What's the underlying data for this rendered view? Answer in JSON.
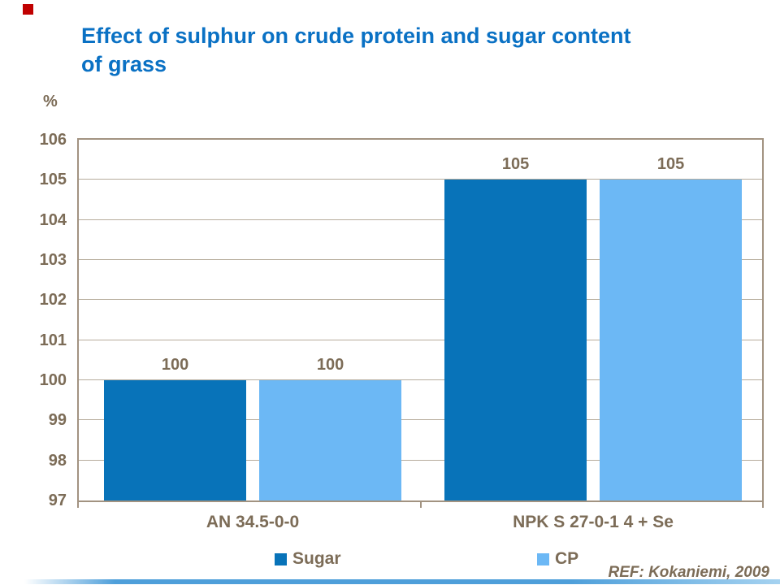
{
  "slide": {
    "title": "Effect of sulphur on crude protein and sugar content of grass",
    "title_color": "#0A71C4",
    "text_color": "#7C6C57",
    "ref": "REF: Kokaniemi, 2009",
    "accent_square_color": "#C00000",
    "footer_bar_colors": [
      "#4E9FDA",
      "#A5D2F0"
    ]
  },
  "chart_data": {
    "type": "bar",
    "title": "Effect of sulphur on crude protein and sugar content of grass",
    "xlabel": "",
    "ylabel": "%",
    "ylim": [
      97,
      106
    ],
    "ytick_step": 1,
    "grid": true,
    "legend_position": "bottom",
    "categories": [
      "AN 34.5-0-0",
      "NPK S 27-0-1 4 + Se"
    ],
    "series": [
      {
        "name": "Sugar",
        "color": "#0873B9",
        "values": [
          100,
          105
        ]
      },
      {
        "name": "CP",
        "color": "#6CB8F5",
        "values": [
          100,
          105
        ]
      }
    ]
  }
}
